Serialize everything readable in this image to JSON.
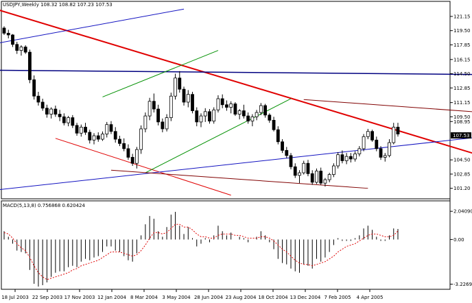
{
  "header": {
    "text": "USDJPY,Weekly  108.32 108.82 107.23 107.53"
  },
  "macd_label": {
    "text": "MACD(5,13,8)  0.756868  0.620424"
  },
  "current_price": "107.53",
  "colors": {
    "bg": "#ffffff",
    "bull": "#ffffff",
    "bear": "#000000",
    "red": "#e00000",
    "navy": "#000080",
    "blue": "#1010c0",
    "green": "#009000",
    "magenta": "#e000e0",
    "teal": "#20a0a0",
    "maroon": "#800000"
  },
  "chart_data": {
    "type": "candlestick",
    "timeframe": "Weekly",
    "symbol": "USDJPY",
    "ylim": [
      100.3,
      122.1
    ],
    "y_ticks": [
      "121.15",
      "119.50",
      "117.85",
      "116.15",
      "114.50",
      "112.85",
      "111.15",
      "109.50",
      "108.95",
      "104.50",
      "102.85",
      "101.20"
    ],
    "x_ticks": [
      "18 Jul 2003",
      "22 Sep 2003",
      "17 Nov 2003",
      "12 Jan 2004",
      "8 Mar 2004",
      "3 May 2004",
      "28 Jun 2004",
      "23 Aug 2004",
      "18 Oct 2004",
      "13 Dec 2004",
      "7 Feb 2005",
      "4 Apr 2005"
    ],
    "candles": [
      [
        119.8,
        120.0,
        119.0,
        119.2
      ],
      [
        119.2,
        119.6,
        118.6,
        119.0
      ],
      [
        119.0,
        119.1,
        117.6,
        117.9
      ],
      [
        117.9,
        118.2,
        116.8,
        117.2
      ],
      [
        117.2,
        117.8,
        116.6,
        117.6
      ],
      [
        117.6,
        117.8,
        116.8,
        117.0
      ],
      [
        117.0,
        117.3,
        113.4,
        113.8
      ],
      [
        113.8,
        114.3,
        111.5,
        111.9
      ],
      [
        111.9,
        112.4,
        110.8,
        111.2
      ],
      [
        111.2,
        111.6,
        110.2,
        110.5
      ],
      [
        110.5,
        110.9,
        109.4,
        109.8
      ],
      [
        109.8,
        110.6,
        109.3,
        110.4
      ],
      [
        110.4,
        110.8,
        109.5,
        109.8
      ],
      [
        109.8,
        110.3,
        109.0,
        109.5
      ],
      [
        109.5,
        109.9,
        108.5,
        108.8
      ],
      [
        108.8,
        109.6,
        108.4,
        109.4
      ],
      [
        109.4,
        109.7,
        108.2,
        108.5
      ],
      [
        108.5,
        108.8,
        107.3,
        107.6
      ],
      [
        107.6,
        108.6,
        107.2,
        108.3
      ],
      [
        108.3,
        108.8,
        107.4,
        107.7
      ],
      [
        107.7,
        108.0,
        106.4,
        106.8
      ],
      [
        106.8,
        107.6,
        106.3,
        107.3
      ],
      [
        107.3,
        107.7,
        106.6,
        106.9
      ],
      [
        106.9,
        107.8,
        106.7,
        107.5
      ],
      [
        107.5,
        108.9,
        107.1,
        108.6
      ],
      [
        108.6,
        109.0,
        107.5,
        107.8
      ],
      [
        107.8,
        108.3,
        106.5,
        106.9
      ],
      [
        106.9,
        107.3,
        106.1,
        106.4
      ],
      [
        106.4,
        107.0,
        105.5,
        105.8
      ],
      [
        105.8,
        106.3,
        104.5,
        104.8
      ],
      [
        104.8,
        105.2,
        103.8,
        104.1
      ],
      [
        104.1,
        106.0,
        103.5,
        105.7
      ],
      [
        105.7,
        108.5,
        105.2,
        108.1
      ],
      [
        108.1,
        110.0,
        107.7,
        109.6
      ],
      [
        109.6,
        111.7,
        109.1,
        111.3
      ],
      [
        111.3,
        112.2,
        110.0,
        110.4
      ],
      [
        110.4,
        110.9,
        108.5,
        108.9
      ],
      [
        108.9,
        109.3,
        107.7,
        108.1
      ],
      [
        108.1,
        109.8,
        107.8,
        109.4
      ],
      [
        109.4,
        112.3,
        109.0,
        111.9
      ],
      [
        111.9,
        114.5,
        111.5,
        114.0
      ],
      [
        114.0,
        114.8,
        112.3,
        112.7
      ],
      [
        112.7,
        113.0,
        110.8,
        111.2
      ],
      [
        111.2,
        112.6,
        110.6,
        112.1
      ],
      [
        112.1,
        112.4,
        109.9,
        110.2
      ],
      [
        110.2,
        110.6,
        108.4,
        108.9
      ],
      [
        108.9,
        109.9,
        108.3,
        109.6
      ],
      [
        109.6,
        110.5,
        108.9,
        110.1
      ],
      [
        110.1,
        110.4,
        108.7,
        109.0
      ],
      [
        109.0,
        110.6,
        108.7,
        110.3
      ],
      [
        110.3,
        112.0,
        110.0,
        111.6
      ],
      [
        111.6,
        112.1,
        110.5,
        110.9
      ],
      [
        110.9,
        111.4,
        110.2,
        110.6
      ],
      [
        110.6,
        111.3,
        109.9,
        111.0
      ],
      [
        111.0,
        111.2,
        109.6,
        109.8
      ],
      [
        109.8,
        110.4,
        109.2,
        110.2
      ],
      [
        110.2,
        110.9,
        109.3,
        109.6
      ],
      [
        109.6,
        110.0,
        108.7,
        109.0
      ],
      [
        109.0,
        109.8,
        108.4,
        109.5
      ],
      [
        109.5,
        110.3,
        109.1,
        110.0
      ],
      [
        110.0,
        111.1,
        109.7,
        110.8
      ],
      [
        110.8,
        111.0,
        109.4,
        109.7
      ],
      [
        109.7,
        109.9,
        108.8,
        109.1
      ],
      [
        109.1,
        109.5,
        107.8,
        108.0
      ],
      [
        108.0,
        108.4,
        106.3,
        106.6
      ],
      [
        106.6,
        106.9,
        105.3,
        105.6
      ],
      [
        105.6,
        106.0,
        104.7,
        105.0
      ],
      [
        105.0,
        105.3,
        103.4,
        103.7
      ],
      [
        103.7,
        104.1,
        102.4,
        102.7
      ],
      [
        102.7,
        103.3,
        101.8,
        103.0
      ],
      [
        103.0,
        104.4,
        102.8,
        104.1
      ],
      [
        104.1,
        104.5,
        102.6,
        102.9
      ],
      [
        102.9,
        103.3,
        101.6,
        101.9
      ],
      [
        101.9,
        103.5,
        101.7,
        103.2
      ],
      [
        103.2,
        103.6,
        101.6,
        101.8
      ],
      [
        101.8,
        102.4,
        101.4,
        102.2
      ],
      [
        102.2,
        103.0,
        101.9,
        102.8
      ],
      [
        102.8,
        104.1,
        102.5,
        103.8
      ],
      [
        103.8,
        105.4,
        103.5,
        105.1
      ],
      [
        105.1,
        105.6,
        104.1,
        104.4
      ],
      [
        104.4,
        105.3,
        104.0,
        104.9
      ],
      [
        104.9,
        105.3,
        104.2,
        104.6
      ],
      [
        104.6,
        105.5,
        104.3,
        105.2
      ],
      [
        105.2,
        106.1,
        104.9,
        105.8
      ],
      [
        105.8,
        107.5,
        105.5,
        107.2
      ],
      [
        107.2,
        108.1,
        106.9,
        107.8
      ],
      [
        107.8,
        108.0,
        106.6,
        106.8
      ],
      [
        106.8,
        107.2,
        105.5,
        105.8
      ],
      [
        105.8,
        106.1,
        104.5,
        104.8
      ],
      [
        104.8,
        105.3,
        104.3,
        105.0
      ],
      [
        105.0,
        106.9,
        104.8,
        106.5
      ],
      [
        106.5,
        108.8,
        106.3,
        108.3
      ],
      [
        108.3,
        108.8,
        107.2,
        107.5
      ]
    ],
    "macd": {
      "ylim": [
        -3.4,
        2.2
      ],
      "ticks": [
        "2.040906",
        "0.00",
        "-3.226927"
      ],
      "hist": [
        0.6,
        0.2,
        -0.3,
        -0.8,
        -0.9,
        -1.0,
        -2.2,
        -3.2,
        -3.4,
        -3.3,
        -3.1,
        -2.7,
        -2.4,
        -2.3,
        -2.3,
        -2.0,
        -1.9,
        -2.0,
        -1.6,
        -1.4,
        -1.5,
        -1.3,
        -1.2,
        -0.9,
        -0.5,
        -0.5,
        -0.8,
        -0.9,
        -1.2,
        -1.5,
        -1.6,
        -1.0,
        0.3,
        1.1,
        1.7,
        1.5,
        0.6,
        0.2,
        0.9,
        1.8,
        2.0,
        1.0,
        0.4,
        0.9,
        0.1,
        -0.5,
        -0.3,
        0.1,
        -0.2,
        0.3,
        1.0,
        0.6,
        0.3,
        0.5,
        0.0,
        0.2,
        0.1,
        -0.2,
        0.0,
        0.2,
        0.6,
        0.3,
        -0.2,
        -0.7,
        -1.4,
        -1.7,
        -1.8,
        -2.1,
        -2.3,
        -2.4,
        -1.8,
        -1.9,
        -2.1,
        -1.4,
        -1.6,
        -1.3,
        -0.9,
        -0.4,
        0.1,
        -0.1,
        -0.1,
        -0.1,
        0.1,
        0.3,
        0.8,
        1.0,
        0.7,
        0.2,
        -0.1,
        -0.1,
        0.3,
        0.8,
        0.76
      ],
      "signal": [
        0.5,
        0.4,
        0.1,
        -0.3,
        -0.6,
        -0.8,
        -1.3,
        -1.9,
        -2.4,
        -2.7,
        -2.9,
        -2.8,
        -2.7,
        -2.6,
        -2.5,
        -2.4,
        -2.2,
        -2.1,
        -1.9,
        -1.8,
        -1.7,
        -1.6,
        -1.5,
        -1.3,
        -1.1,
        -0.9,
        -0.9,
        -0.9,
        -1.0,
        -1.1,
        -1.2,
        -1.1,
        -0.8,
        -0.4,
        0.1,
        0.5,
        0.5,
        0.4,
        0.5,
        0.8,
        1.1,
        1.1,
        0.9,
        0.9,
        0.7,
        0.4,
        0.2,
        0.2,
        0.1,
        0.1,
        0.3,
        0.4,
        0.4,
        0.4,
        0.3,
        0.3,
        0.2,
        0.1,
        0.1,
        0.1,
        0.2,
        0.2,
        0.1,
        -0.1,
        -0.4,
        -0.7,
        -0.9,
        -1.2,
        -1.5,
        -1.7,
        -1.8,
        -1.8,
        -1.9,
        -1.8,
        -1.7,
        -1.6,
        -1.4,
        -1.2,
        -0.9,
        -0.7,
        -0.5,
        -0.4,
        -0.3,
        -0.1,
        0.1,
        0.3,
        0.4,
        0.4,
        0.3,
        0.2,
        0.2,
        0.3,
        0.62
      ]
    },
    "annotations": [
      {
        "type": "trendline",
        "color": "red",
        "width": 2,
        "from": [
          -2,
          122.0
        ],
        "to": [
          112,
          104.9
        ]
      },
      {
        "type": "trendline",
        "color": "red",
        "width": 1,
        "from": [
          12,
          107.0
        ],
        "to": [
          53,
          100.4
        ]
      },
      {
        "type": "trendline",
        "color": "navy",
        "width": 1.5,
        "from": [
          -2,
          114.9
        ],
        "to": [
          112,
          114.4
        ]
      },
      {
        "type": "trendline",
        "color": "blue",
        "width": 1,
        "from": [
          -2,
          118.0
        ],
        "to": [
          42,
          122.0
        ]
      },
      {
        "type": "trendline",
        "color": "blue",
        "width": 1,
        "from": [
          -2,
          101.0
        ],
        "to": [
          112,
          107.2
        ]
      },
      {
        "type": "trendline",
        "color": "green",
        "width": 1,
        "from": [
          23,
          111.8
        ],
        "to": [
          50,
          117.2
        ]
      },
      {
        "type": "trendline",
        "color": "green",
        "width": 1,
        "from": [
          33,
          103.0
        ],
        "to": [
          67,
          111.6
        ]
      },
      {
        "type": "trendline",
        "color": "maroon",
        "width": 1,
        "from": [
          25,
          103.3
        ],
        "to": [
          85,
          101.2
        ]
      },
      {
        "type": "trendline",
        "color": "maroon",
        "width": 1,
        "from": [
          70,
          111.5
        ],
        "to": [
          112,
          110.0
        ]
      }
    ]
  }
}
